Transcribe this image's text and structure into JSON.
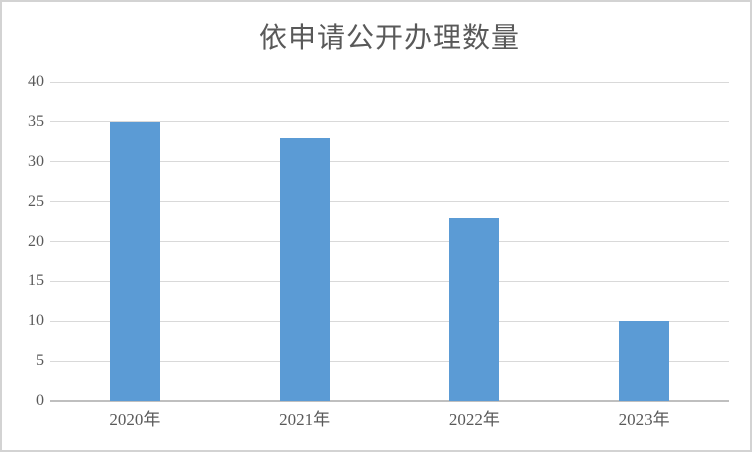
{
  "chart_data": {
    "type": "bar",
    "title": "依申请公开办理数量",
    "categories": [
      "2020年",
      "2021年",
      "2022年",
      "2023年"
    ],
    "values": [
      35,
      33,
      23,
      10
    ],
    "xlabel": "",
    "ylabel": "",
    "ylim": [
      0,
      40
    ],
    "yticks": [
      0,
      5,
      10,
      15,
      20,
      25,
      30,
      35,
      40
    ],
    "grid": true,
    "legend": false,
    "colors": {
      "bar": "#5B9BD5",
      "gridline": "#D9D9D9",
      "axis_line": "#BFBFBF",
      "text": "#595959",
      "title": "#595959",
      "frame_border": "#D3D3D3",
      "background": "#FFFFFF"
    }
  }
}
